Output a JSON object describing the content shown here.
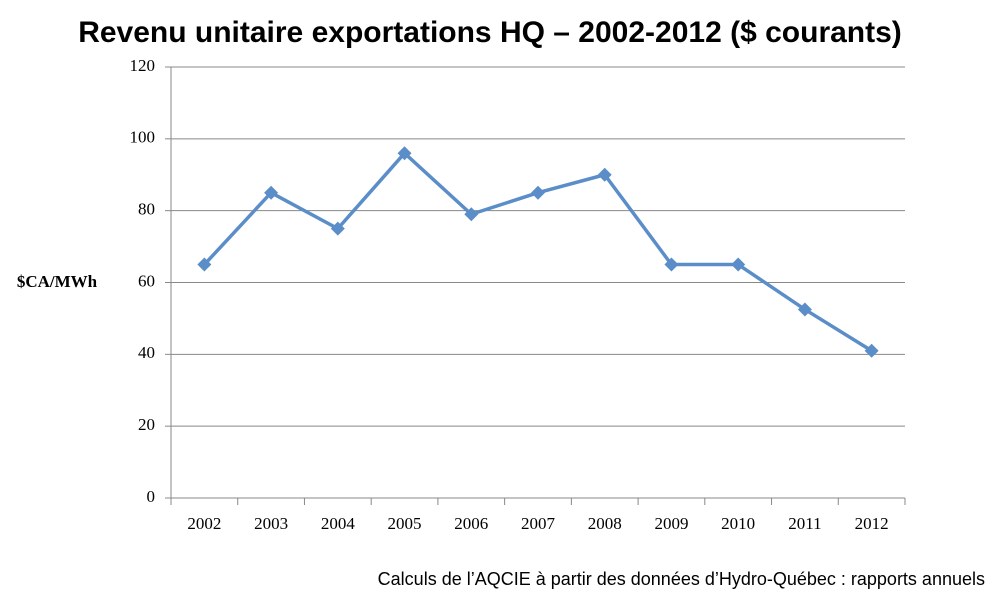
{
  "chart_data": {
    "type": "line",
    "title": "Revenu unitaire exportations HQ – 2002-2012 ($ courants)",
    "y_label": "$CA/MWh",
    "source": "Calculs de l’AQCIE à partir des données d’Hydro-Québec : rapports annuels",
    "categories": [
      "2002",
      "2003",
      "2004",
      "2005",
      "2006",
      "2007",
      "2008",
      "2009",
      "2010",
      "2011",
      "2012"
    ],
    "values": [
      65,
      85,
      75,
      96,
      79,
      85,
      90,
      65,
      65,
      52.5,
      41
    ],
    "color": "#5b8ec9",
    "ylim": [
      0,
      120
    ],
    "yticks": [
      0,
      20,
      40,
      60,
      80,
      100,
      120
    ],
    "grid": true
  }
}
